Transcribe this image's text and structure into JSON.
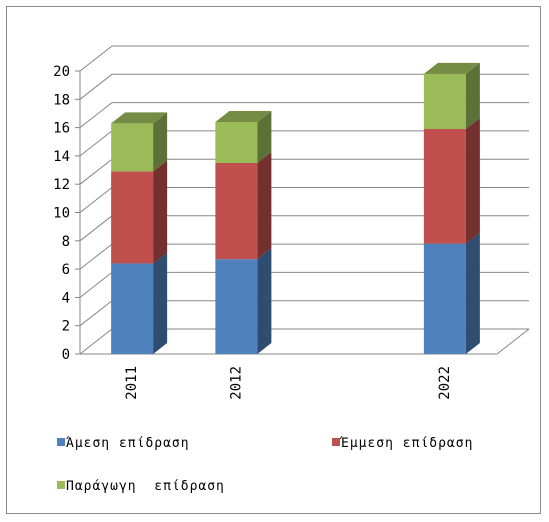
{
  "chart_data": {
    "type": "bar",
    "stacked": true,
    "three_d": true,
    "title": "",
    "xlabel": "",
    "ylabel": "",
    "ylim": [
      0,
      20
    ],
    "y_ticks": [
      "0",
      "2",
      "4",
      "6",
      "8",
      "10",
      "12",
      "14",
      "16",
      "18",
      "20"
    ],
    "grid": true,
    "legend_position": "bottom",
    "categories": [
      "2011",
      "2012",
      "2022"
    ],
    "series": [
      {
        "name": "Άμεση επίδραση",
        "color": "#4f81bd",
        "values": [
          6.4,
          6.7,
          7.8
        ]
      },
      {
        "name": "Έμμεση επίδραση",
        "color": "#c0504d",
        "values": [
          6.5,
          6.8,
          8.1
        ]
      },
      {
        "name": "Παράγωγη  επίδραση",
        "color": "#9bbb59",
        "values": [
          3.4,
          2.9,
          3.9
        ]
      }
    ]
  }
}
